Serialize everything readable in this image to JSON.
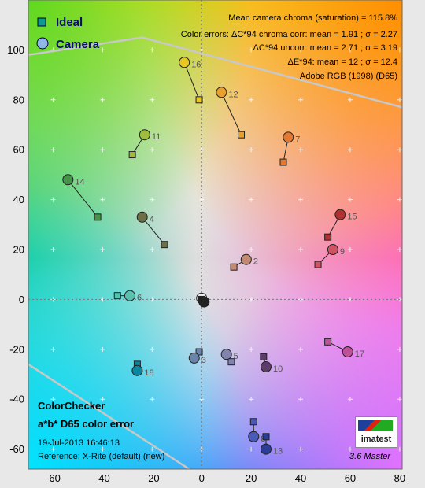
{
  "chart_data": {
    "type": "scatter",
    "title_lines": [
      "ColorChecker",
      "a*b* D65 color error"
    ],
    "date": "19-Jul-2013 16:46:13",
    "reference": "Reference: X-Rite (default) (new)",
    "version": "3.6  Master",
    "logo_text": "imatest",
    "info": [
      "Mean camera chroma (saturation) = 115.8%",
      "Color errors:  ΔC*94 chroma corr:  mean = 1.91 ;  σ = 2.27",
      "ΔC*94 uncorr:  mean = 2.71 ;  σ = 3.19",
      "ΔE*94:  mean = 12 ;  σ = 12.4",
      "Adobe RGB (1998) (D65)"
    ],
    "legend": [
      "Ideal",
      "Camera"
    ],
    "xlim": [
      -70,
      81
    ],
    "ylim": [
      -68,
      120
    ],
    "x_ticks": [
      -60,
      -40,
      -20,
      0,
      20,
      40,
      60,
      80
    ],
    "y_ticks": [
      -60,
      -40,
      -20,
      0,
      20,
      40,
      60,
      80,
      100
    ],
    "grid": true,
    "patches": [
      {
        "id": 2,
        "ideal": [
          13,
          13
        ],
        "camera": [
          18,
          16
        ],
        "color": "#c28a70"
      },
      {
        "id": 3,
        "ideal": [
          -1,
          -21
        ],
        "camera": [
          -3,
          -23.5
        ],
        "color": "#6a83a8"
      },
      {
        "id": 4,
        "ideal": [
          -15,
          22
        ],
        "camera": [
          -24,
          33
        ],
        "color": "#6b7048"
      },
      {
        "id": 5,
        "ideal": [
          12,
          -25
        ],
        "camera": [
          10,
          -22
        ],
        "color": "#8383b0"
      },
      {
        "id": 6,
        "ideal": [
          -34,
          1.5
        ],
        "camera": [
          -29,
          1.5
        ],
        "color": "#5ac0b0"
      },
      {
        "id": 7,
        "ideal": [
          33,
          55
        ],
        "camera": [
          35,
          65
        ],
        "color": "#e57830"
      },
      {
        "id": 8,
        "ideal": [
          21,
          -49
        ],
        "camera": [
          21,
          -55
        ],
        "color": "#4a5aba"
      },
      {
        "id": 9,
        "ideal": [
          47,
          14
        ],
        "camera": [
          53,
          20
        ],
        "color": "#cf5363"
      },
      {
        "id": 10,
        "ideal": [
          25,
          -23
        ],
        "camera": [
          26,
          -27
        ],
        "color": "#5e3d6b"
      },
      {
        "id": 11,
        "ideal": [
          -28,
          58
        ],
        "camera": [
          -23,
          66
        ],
        "color": "#a0bc40"
      },
      {
        "id": 12,
        "ideal": [
          16,
          66
        ],
        "camera": [
          8,
          83
        ],
        "color": "#e8a030"
      },
      {
        "id": 13,
        "ideal": [
          26,
          -55
        ],
        "camera": [
          26,
          -60
        ],
        "color": "#2a3e98"
      },
      {
        "id": 14,
        "ideal": [
          -42,
          33
        ],
        "camera": [
          -54,
          48
        ],
        "color": "#46944a"
      },
      {
        "id": 15,
        "ideal": [
          51,
          25
        ],
        "camera": [
          56,
          34
        ],
        "color": "#b33030"
      },
      {
        "id": 16,
        "ideal": [
          -1,
          80
        ],
        "camera": [
          -7,
          95
        ],
        "color": "#e8c820"
      },
      {
        "id": 17,
        "ideal": [
          51,
          -17
        ],
        "camera": [
          59,
          -21
        ],
        "color": "#c0509a"
      },
      {
        "id": 18,
        "ideal": [
          -26,
          -26
        ],
        "camera": [
          -26,
          -28.5
        ],
        "color": "#0886a2"
      },
      {
        "id": 19,
        "ideal": [
          0,
          0
        ],
        "camera": [
          0,
          0.5
        ],
        "color": "#f2f2f2"
      },
      {
        "id": 20,
        "ideal": [
          0,
          0
        ],
        "camera": [
          1,
          -1
        ],
        "color": "#222222"
      }
    ],
    "gamut_upper": [
      [
        -70,
        98
      ],
      [
        -24,
        105
      ],
      [
        81,
        77
      ]
    ],
    "gamut_lower": [
      [
        -70,
        -26
      ],
      [
        -5,
        -68
      ]
    ]
  }
}
